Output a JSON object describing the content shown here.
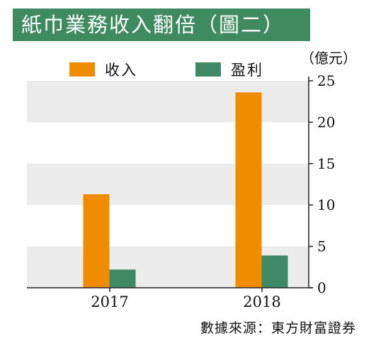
{
  "title": "紙巾業務收入翻倍（圖二）",
  "unit": "（億元）",
  "source": "數據來源：東方財富證券",
  "colors": {
    "title_bg": "#3f8a5f",
    "revenue": "#f08c00",
    "profit": "#3e8a66",
    "band": "#ececec"
  },
  "chart_data": {
    "type": "bar",
    "categories": [
      "2017",
      "2018"
    ],
    "series": [
      {
        "name": "收入",
        "values": [
          11.3,
          23.6
        ]
      },
      {
        "name": "盈利",
        "values": [
          2.2,
          3.9
        ]
      }
    ],
    "ylim": [
      0,
      25
    ],
    "yticks": [
      "0",
      "5",
      "10",
      "15",
      "20",
      "25"
    ],
    "y_axis_position": "right",
    "grid": "alternating horizontal bands",
    "legend_position": "top"
  }
}
